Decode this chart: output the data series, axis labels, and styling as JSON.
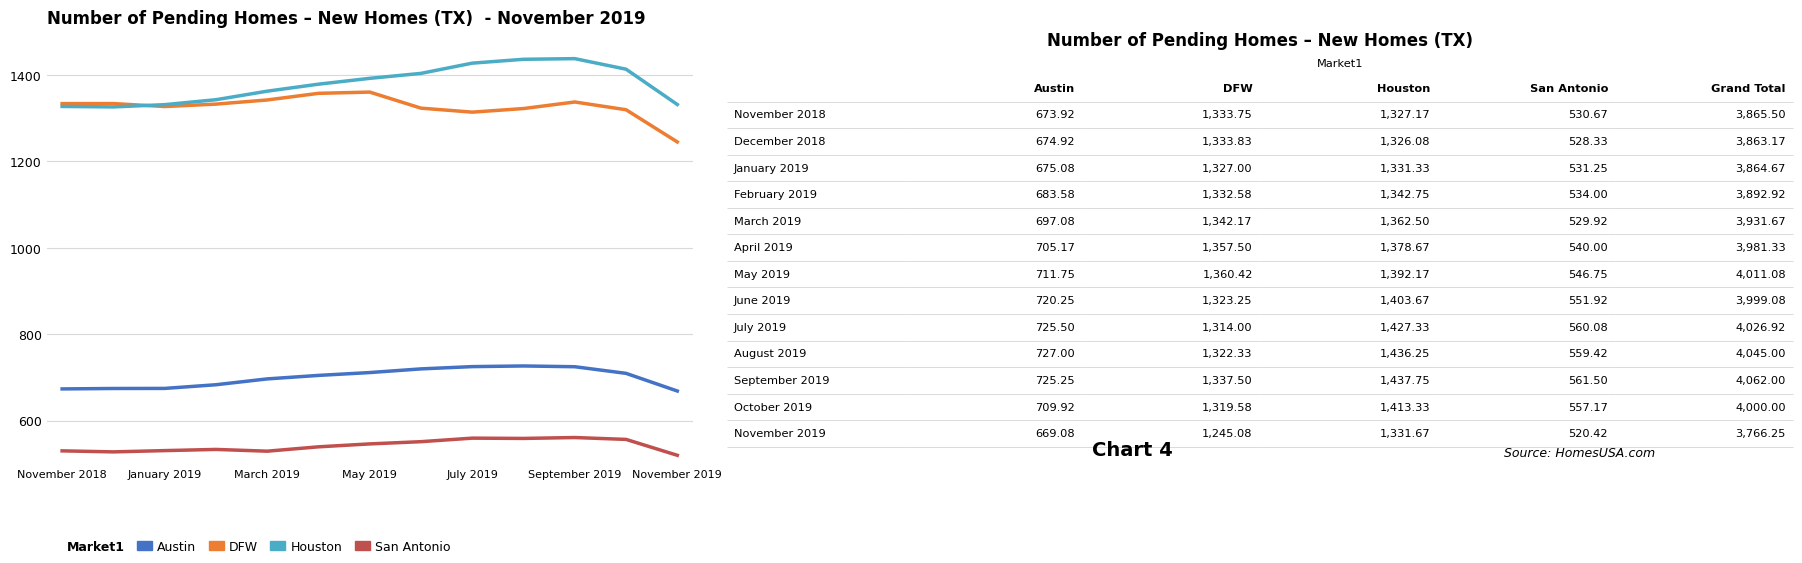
{
  "chart_title": "Number of Pending Homes – New Homes (TX)  - November 2019",
  "table_title": "Number of Pending Homes – New Homes (TX)",
  "months": [
    "November 2018",
    "December 2018",
    "January 2019",
    "February 2019",
    "March 2019",
    "April 2019",
    "May 2019",
    "June 2019",
    "July 2019",
    "August 2019",
    "September 2019",
    "October 2019",
    "November 2019"
  ],
  "austin": [
    673.92,
    674.92,
    675.08,
    683.58,
    697.08,
    705.17,
    711.75,
    720.25,
    725.5,
    727.0,
    725.25,
    709.92,
    669.08
  ],
  "dfw": [
    1333.75,
    1333.83,
    1327.0,
    1332.58,
    1342.17,
    1357.5,
    1360.42,
    1323.25,
    1314.0,
    1322.33,
    1337.5,
    1319.58,
    1245.08
  ],
  "houston": [
    1327.17,
    1326.08,
    1331.33,
    1342.75,
    1362.5,
    1378.67,
    1392.17,
    1403.67,
    1427.33,
    1436.25,
    1437.75,
    1413.33,
    1331.67
  ],
  "san_antonio": [
    530.67,
    528.33,
    531.25,
    534.0,
    529.92,
    540.0,
    546.75,
    551.92,
    560.08,
    559.42,
    561.5,
    557.17,
    520.42
  ],
  "grand_total": [
    3865.5,
    3863.17,
    3864.67,
    3892.92,
    3931.67,
    3981.33,
    4011.08,
    3999.08,
    4026.92,
    4045.0,
    4062.0,
    4000.0,
    3766.25
  ],
  "x_tick_labels": [
    "November 2018",
    "January 2019",
    "March 2019",
    "May 2019",
    "July 2019",
    "September 2019",
    "November 2019"
  ],
  "x_tick_indices": [
    0,
    2,
    4,
    6,
    8,
    10,
    12
  ],
  "ylim": [
    500,
    1500
  ],
  "yticks": [
    600,
    800,
    1000,
    1200,
    1400
  ],
  "color_austin": "#4472C4",
  "color_dfw": "#ED7D31",
  "color_houston": "#4BACC6",
  "color_san_antonio": "#C0504D",
  "line_width": 2.5,
  "bg_color": "#FFFFFF",
  "grid_color": "#D9D9D9",
  "chart4_label": "Chart 4",
  "source_label": "Source: HomesUSA.com",
  "col_headers": [
    "",
    "Austin",
    "DFW",
    "Houston",
    "San Antonio",
    "Grand Total"
  ],
  "market1_label": "Market1"
}
